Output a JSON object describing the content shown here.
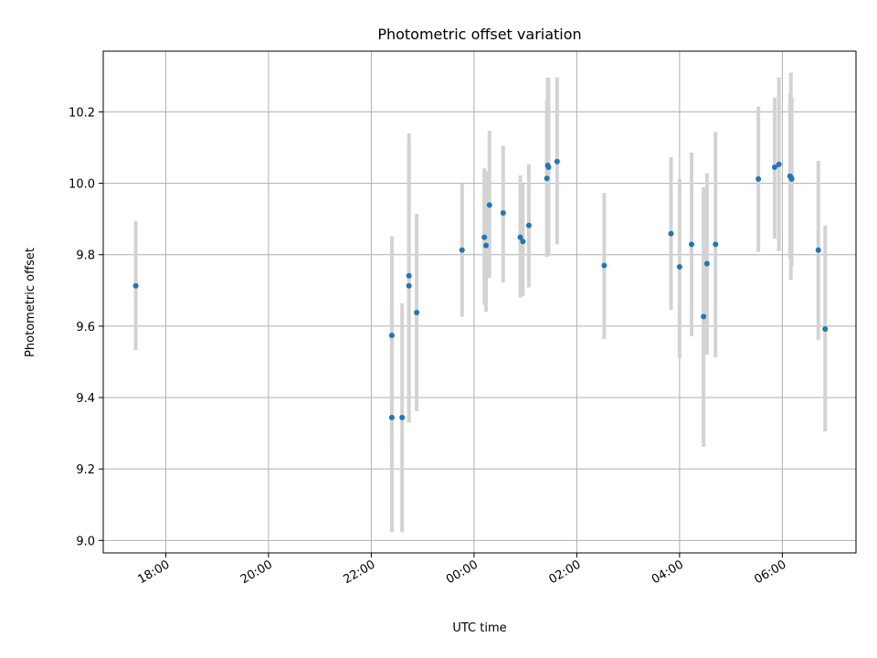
{
  "chart_data": {
    "type": "scatter",
    "title": "Photometric offset variation",
    "xlabel": "UTC time",
    "ylabel": "Photometric offset",
    "grid": true,
    "x_axis_type": "time",
    "xlim": [
      "16:47",
      "31:26"
    ],
    "ylim": [
      8.965,
      10.37
    ],
    "x_ticks": [
      {
        "t": "18:00",
        "label": "18:00"
      },
      {
        "t": "20:00",
        "label": "20:00"
      },
      {
        "t": "22:00",
        "label": "22:00"
      },
      {
        "t": "24:00",
        "label": "00:00"
      },
      {
        "t": "26:00",
        "label": "02:00"
      },
      {
        "t": "28:00",
        "label": "04:00"
      },
      {
        "t": "30:00",
        "label": "06:00"
      }
    ],
    "y_ticks": [
      9.0,
      9.2,
      9.4,
      9.6,
      9.8,
      10.0,
      10.2
    ],
    "y_tick_labels": [
      "9.0",
      "9.2",
      "9.4",
      "9.6",
      "9.8",
      "10.0",
      "10.2"
    ],
    "colors": {
      "point": "#1f77b4",
      "errorbar": "#d3d3d3",
      "grid": "#b0b0b0"
    },
    "points": [
      {
        "t": "17:25",
        "y": 9.713,
        "lo": 9.533,
        "hi": 9.895
      },
      {
        "t": "22:24",
        "y": 9.574,
        "lo": 9.27,
        "hi": 9.851
      },
      {
        "t": "22:24",
        "y": 9.344,
        "lo": 9.023,
        "hi": 9.66
      },
      {
        "t": "22:36",
        "y": 9.344,
        "lo": 9.023,
        "hi": 9.664
      },
      {
        "t": "22:44",
        "y": 9.741,
        "lo": 9.33,
        "hi": 10.14
      },
      {
        "t": "22:44",
        "y": 9.713,
        "lo": 9.33,
        "hi": 10.1
      },
      {
        "t": "22:53",
        "y": 9.638,
        "lo": 9.362,
        "hi": 9.914
      },
      {
        "t": "23:46",
        "y": 9.813,
        "lo": 9.626,
        "hi": 9.999
      },
      {
        "t": "24:12",
        "y": 9.849,
        "lo": 9.66,
        "hi": 10.042
      },
      {
        "t": "24:14",
        "y": 9.826,
        "lo": 9.64,
        "hi": 10.033
      },
      {
        "t": "24:18",
        "y": 9.939,
        "lo": 9.735,
        "hi": 10.147
      },
      {
        "t": "24:34",
        "y": 9.917,
        "lo": 9.723,
        "hi": 10.105
      },
      {
        "t": "24:54",
        "y": 9.849,
        "lo": 9.68,
        "hi": 10.022
      },
      {
        "t": "24:57",
        "y": 9.837,
        "lo": 9.684,
        "hi": 9.999
      },
      {
        "t": "25:04",
        "y": 9.882,
        "lo": 9.708,
        "hi": 10.053
      },
      {
        "t": "25:25",
        "y": 10.014,
        "lo": 9.794,
        "hi": 10.233
      },
      {
        "t": "25:26",
        "y": 10.05,
        "lo": 9.8,
        "hi": 10.296
      },
      {
        "t": "25:27",
        "y": 10.045,
        "lo": 9.8,
        "hi": 10.296
      },
      {
        "t": "25:37",
        "y": 10.061,
        "lo": 9.829,
        "hi": 10.296
      },
      {
        "t": "26:32",
        "y": 9.77,
        "lo": 9.564,
        "hi": 9.973
      },
      {
        "t": "27:50",
        "y": 9.859,
        "lo": 9.646,
        "hi": 10.073
      },
      {
        "t": "28:00",
        "y": 9.766,
        "lo": 9.51,
        "hi": 10.013
      },
      {
        "t": "28:14",
        "y": 9.829,
        "lo": 9.572,
        "hi": 10.086
      },
      {
        "t": "28:28",
        "y": 9.627,
        "lo": 9.262,
        "hi": 9.989
      },
      {
        "t": "28:32",
        "y": 9.775,
        "lo": 9.52,
        "hi": 10.028
      },
      {
        "t": "28:42",
        "y": 9.829,
        "lo": 9.513,
        "hi": 10.144
      },
      {
        "t": "29:32",
        "y": 10.012,
        "lo": 9.808,
        "hi": 10.215
      },
      {
        "t": "29:51",
        "y": 10.045,
        "lo": 9.845,
        "hi": 10.24
      },
      {
        "t": "29:56",
        "y": 10.053,
        "lo": 9.81,
        "hi": 10.296
      },
      {
        "t": "30:09",
        "y": 10.02,
        "lo": 9.79,
        "hi": 10.25
      },
      {
        "t": "30:10",
        "y": 10.017,
        "lo": 9.73,
        "hi": 10.31
      },
      {
        "t": "30:11",
        "y": 10.012,
        "lo": 9.77,
        "hi": 10.24
      },
      {
        "t": "30:42",
        "y": 9.813,
        "lo": 9.562,
        "hi": 10.063
      },
      {
        "t": "30:50",
        "y": 9.592,
        "lo": 9.305,
        "hi": 9.882
      }
    ]
  }
}
